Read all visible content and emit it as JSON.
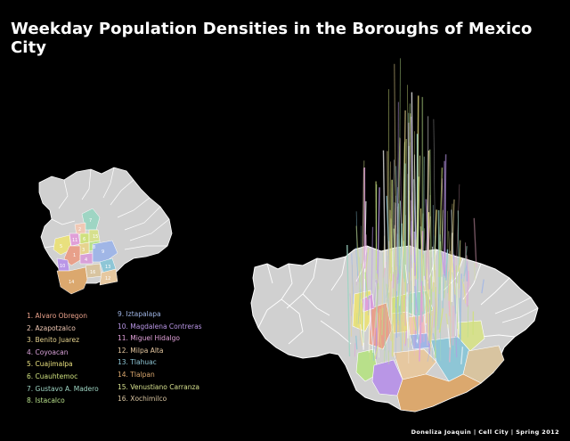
{
  "title": "Weekday Population Densities in the Boroughs of Mexico City",
  "credit": "Doneliza Joaquin | Cell City | Spring 2012",
  "colors": {
    "background": "#000000",
    "municipality_fill": "#d0d0d0",
    "municipality_stroke": "#ffffff"
  },
  "boroughs": [
    {
      "number": 1,
      "label": "1. Alvaro Obregon",
      "color": "#e8a08a"
    },
    {
      "number": 2,
      "label": "2. Azapotzalco",
      "color": "#f0c8b4"
    },
    {
      "number": 3,
      "label": "3. Benito Juarez",
      "color": "#e6d38e"
    },
    {
      "number": 4,
      "label": "4. Coyoacan",
      "color": "#d8a0d8"
    },
    {
      "number": 5,
      "label": "5. Cuajimalpa",
      "color": "#e9e07e"
    },
    {
      "number": 6,
      "label": "6. Cuauhtemoc",
      "color": "#cfe07e"
    },
    {
      "number": 7,
      "label": "7. Gustavo A. Madero",
      "color": "#9ed5c3"
    },
    {
      "number": 8,
      "label": "8. Istacalco",
      "color": "#b8e08a"
    },
    {
      "number": 9,
      "label": "9. Iztapalapa",
      "color": "#a0b6e6"
    },
    {
      "number": 10,
      "label": "10. Magdalena Contreras",
      "color": "#b996e6"
    },
    {
      "number": 11,
      "label": "11. Miguel Hidalgo",
      "color": "#e0a0d8"
    },
    {
      "number": 12,
      "label": "12. Milpa Alta",
      "color": "#e6c8a0"
    },
    {
      "number": 13,
      "label": "13. Tlahuac",
      "color": "#8ec6d6"
    },
    {
      "number": 14,
      "label": "14. Tlalpan",
      "color": "#dba86e"
    },
    {
      "number": 15,
      "label": "15. Venustiano Carranza",
      "color": "#d6e08e"
    },
    {
      "number": 16,
      "label": "16. Xochimilco",
      "color": "#d8c4a0"
    }
  ],
  "spike_colors": [
    "#9ed5c3",
    "#e0a0d8",
    "#f0b0c8",
    "#a0b6e6",
    "#cfe07e",
    "#e9e07e",
    "#8ec6d6",
    "#d6e08e",
    "#b996e6",
    "#ffffff",
    "#e6d38e",
    "#b8e08a"
  ]
}
